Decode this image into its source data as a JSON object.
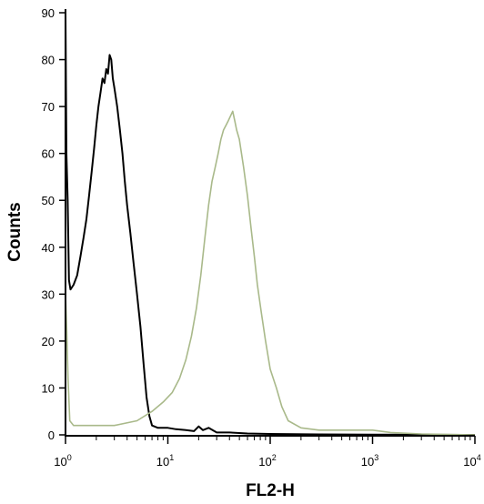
{
  "chart_data": {
    "type": "line",
    "xlabel": "FL2-H",
    "ylabel": "Counts",
    "x_scale": "log",
    "xlim": [
      1,
      10000
    ],
    "ylim": [
      0,
      90
    ],
    "y_ticks": [
      0,
      10,
      20,
      30,
      40,
      50,
      60,
      70,
      80,
      90
    ],
    "x_ticks": [
      1,
      10,
      100,
      1000,
      10000
    ],
    "x_tick_labels": [
      {
        "base": "10",
        "exp": "0"
      },
      {
        "base": "10",
        "exp": "1"
      },
      {
        "base": "10",
        "exp": "2"
      },
      {
        "base": "10",
        "exp": "3"
      },
      {
        "base": "10",
        "exp": "4"
      }
    ],
    "grid": false,
    "series": [
      {
        "color": "#000000",
        "points": [
          [
            1.0,
            90
          ],
          [
            1.02,
            60
          ],
          [
            1.05,
            50
          ],
          [
            1.08,
            33
          ],
          [
            1.12,
            31
          ],
          [
            1.2,
            32
          ],
          [
            1.3,
            34
          ],
          [
            1.4,
            38
          ],
          [
            1.5,
            42
          ],
          [
            1.6,
            46
          ],
          [
            1.7,
            51
          ],
          [
            1.8,
            56
          ],
          [
            1.9,
            61
          ],
          [
            2.0,
            66
          ],
          [
            2.1,
            70
          ],
          [
            2.2,
            73
          ],
          [
            2.3,
            76
          ],
          [
            2.4,
            75
          ],
          [
            2.5,
            78
          ],
          [
            2.6,
            77
          ],
          [
            2.7,
            81
          ],
          [
            2.8,
            80
          ],
          [
            2.9,
            76
          ],
          [
            3.0,
            74
          ],
          [
            3.2,
            70
          ],
          [
            3.4,
            65
          ],
          [
            3.6,
            60
          ],
          [
            3.8,
            54
          ],
          [
            4.0,
            49
          ],
          [
            4.3,
            43
          ],
          [
            4.6,
            37
          ],
          [
            5.0,
            30
          ],
          [
            5.4,
            23
          ],
          [
            5.8,
            15
          ],
          [
            6.2,
            8
          ],
          [
            6.6,
            4
          ],
          [
            7.0,
            2
          ],
          [
            8.0,
            1.5
          ],
          [
            10,
            1.5
          ],
          [
            12,
            1.2
          ],
          [
            15,
            1
          ],
          [
            18,
            0.8
          ],
          [
            20,
            1.8
          ],
          [
            22,
            1
          ],
          [
            25,
            1.5
          ],
          [
            30,
            0.5
          ],
          [
            40,
            0.5
          ],
          [
            60,
            0.3
          ],
          [
            100,
            0.2
          ],
          [
            300,
            0.1
          ],
          [
            1000,
            0.05
          ],
          [
            10000,
            0
          ]
        ]
      },
      {
        "color": "#a9b98a",
        "points": [
          [
            1.0,
            30
          ],
          [
            1.03,
            22
          ],
          [
            1.06,
            12
          ],
          [
            1.1,
            3
          ],
          [
            1.2,
            2
          ],
          [
            1.5,
            2
          ],
          [
            2.0,
            2
          ],
          [
            3.0,
            2
          ],
          [
            5.0,
            3
          ],
          [
            7.0,
            5
          ],
          [
            9.0,
            7
          ],
          [
            11,
            9
          ],
          [
            13,
            12
          ],
          [
            15,
            16
          ],
          [
            17,
            21
          ],
          [
            19,
            27
          ],
          [
            21,
            34
          ],
          [
            23,
            42
          ],
          [
            25,
            49
          ],
          [
            27,
            54
          ],
          [
            29,
            57
          ],
          [
            31,
            60
          ],
          [
            33,
            63
          ],
          [
            35,
            65
          ],
          [
            37,
            66
          ],
          [
            39,
            67
          ],
          [
            41,
            68
          ],
          [
            43,
            69
          ],
          [
            45,
            67
          ],
          [
            47,
            65
          ],
          [
            50,
            63
          ],
          [
            55,
            57
          ],
          [
            60,
            51
          ],
          [
            65,
            44
          ],
          [
            70,
            38
          ],
          [
            75,
            32
          ],
          [
            82,
            26
          ],
          [
            90,
            20
          ],
          [
            100,
            14
          ],
          [
            115,
            10
          ],
          [
            130,
            6
          ],
          [
            150,
            3
          ],
          [
            200,
            1.5
          ],
          [
            300,
            1
          ],
          [
            500,
            1
          ],
          [
            1000,
            1
          ],
          [
            1500,
            0.5
          ],
          [
            3000,
            0.2
          ],
          [
            10000,
            0
          ]
        ]
      }
    ]
  }
}
